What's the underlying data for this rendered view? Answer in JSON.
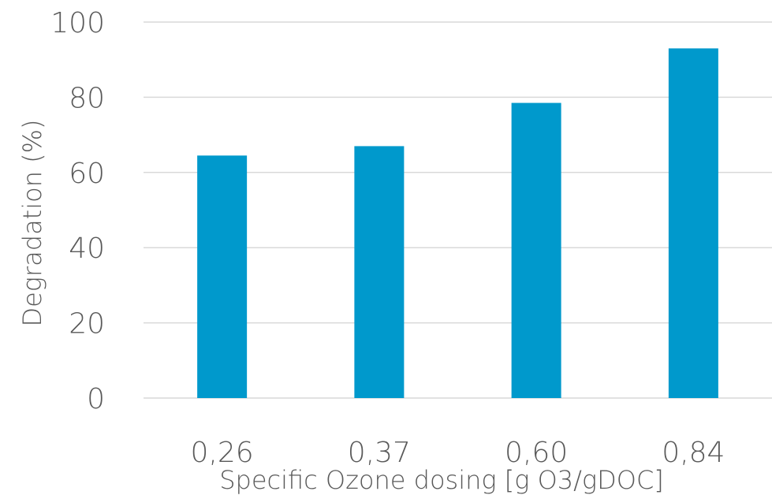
{
  "chart_data": {
    "type": "bar",
    "categories": [
      "0,26",
      "0,37",
      "0,60",
      "0,84"
    ],
    "values": [
      64.5,
      67,
      78.5,
      93
    ],
    "title": "",
    "xlabel": "Specific Ozone dosing [g O3/gDOC]",
    "ylabel": "Degradation (%)",
    "ylim": [
      0,
      100
    ],
    "yticks": [
      "0",
      "20",
      "40",
      "60",
      "80",
      "100"
    ],
    "grid": true,
    "legend": "none",
    "bar_color": "#0099cc",
    "grid_color": "#d9d9d9",
    "text_color": "#595959"
  }
}
